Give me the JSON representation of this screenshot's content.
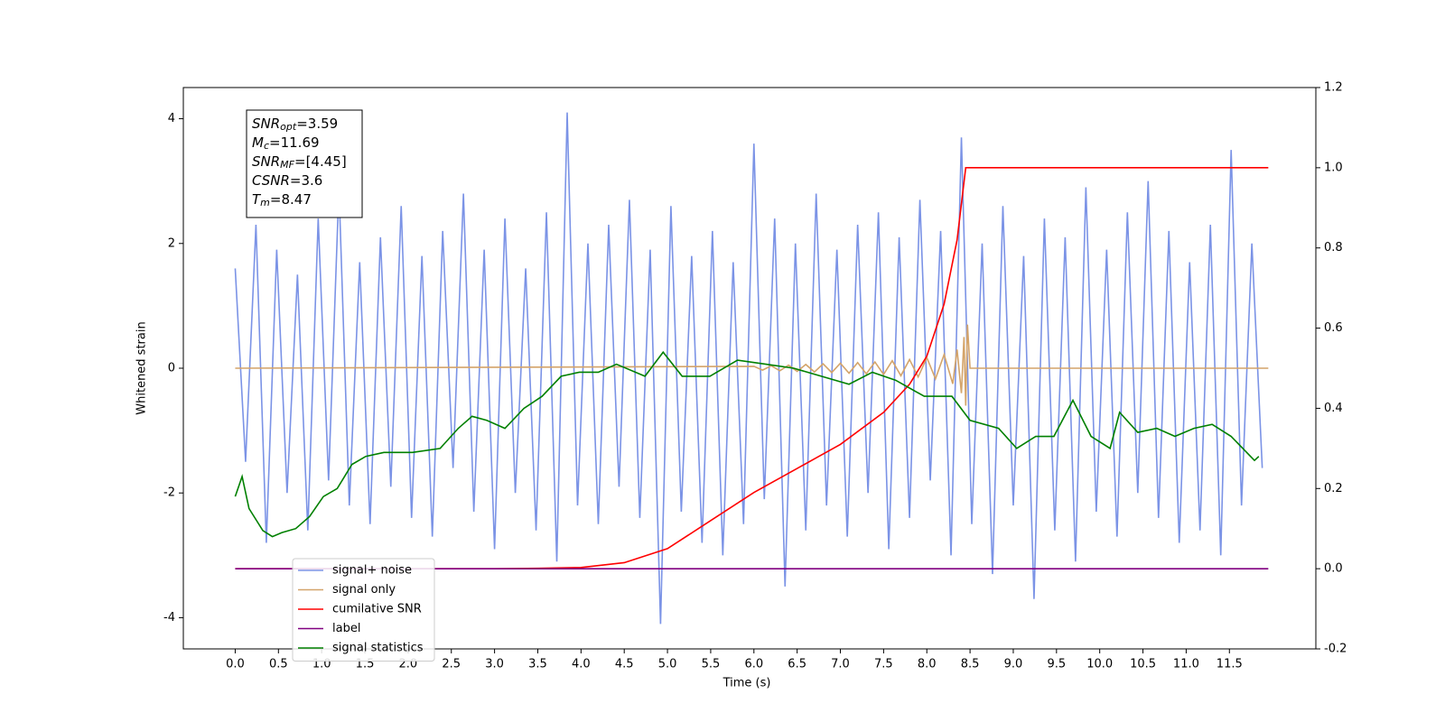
{
  "chart_data": {
    "type": "line",
    "xlabel": "Time (s)",
    "ylabel": "Whitened strain",
    "xlim": [
      -0.6,
      12.5
    ],
    "ylim": [
      -4.5,
      4.5
    ],
    "y2lim": [
      -0.2,
      1.2
    ],
    "xticks": [
      {
        "value": 0,
        "label": "0.0"
      },
      0.5,
      {
        "value": 1,
        "label": "1.0"
      },
      1.5,
      {
        "value": 2,
        "label": "2.0"
      },
      2.5,
      {
        "value": 3,
        "label": "3.0"
      },
      3.5,
      {
        "value": 4,
        "label": "4.0"
      },
      4.5,
      {
        "value": 5,
        "label": "5.0"
      },
      5.5,
      {
        "value": 6,
        "label": "6.0"
      },
      6.5,
      {
        "value": 7,
        "label": "7.0"
      },
      7.5,
      {
        "value": 8,
        "label": "8.0"
      },
      8.5,
      {
        "value": 9,
        "label": "9.0"
      },
      9.5,
      {
        "value": 10,
        "label": "10.0"
      },
      10.5,
      {
        "value": 11,
        "label": "11.0"
      },
      11.5
    ],
    "yticks": [
      -4,
      -2,
      0,
      2,
      4
    ],
    "y2ticks": [
      -0.2,
      {
        "value": 0,
        "label": "0.0"
      },
      0.2,
      0.4,
      0.6,
      0.8,
      {
        "value": 1,
        "label": "1.0"
      },
      1.2
    ],
    "legend": "lower left",
    "annotation": [
      {
        "base": "SNR",
        "sub": "opt",
        "rest": "=3.59"
      },
      {
        "base": "M",
        "sub": "c",
        "rest": "=11.69"
      },
      {
        "base": "SNR",
        "sub": "MF",
        "rest": "=[4.45]"
      },
      {
        "base": "CSNR",
        "sub": "",
        "rest": "=3.6"
      },
      {
        "base": "T",
        "sub": "m",
        "rest": "=8.47"
      }
    ],
    "series": [
      {
        "name": "signal+ noise",
        "color": "#7b93e6",
        "axis": "y",
        "x": [
          0,
          0.12,
          0.24,
          0.36,
          0.48,
          0.6,
          0.72,
          0.84,
          0.96,
          1.08,
          1.2,
          1.32,
          1.44,
          1.56,
          1.68,
          1.8,
          1.92,
          2.04,
          2.16,
          2.28,
          2.4,
          2.52,
          2.64,
          2.76,
          2.88,
          3,
          3.12,
          3.24,
          3.36,
          3.48,
          3.6,
          3.72,
          3.84,
          3.96,
          4.08,
          4.2,
          4.32,
          4.44,
          4.56,
          4.68,
          4.8,
          4.92,
          5.04,
          5.16,
          5.28,
          5.4,
          5.52,
          5.64,
          5.76,
          5.88,
          6,
          6.12,
          6.24,
          6.36,
          6.48,
          6.6,
          6.72,
          6.84,
          6.96,
          7.08,
          7.2,
          7.32,
          7.44,
          7.56,
          7.68,
          7.8,
          7.92,
          8.04,
          8.16,
          8.28,
          8.4,
          8.52,
          8.64,
          8.76,
          8.88,
          9,
          9.12,
          9.24,
          9.36,
          9.48,
          9.6,
          9.72,
          9.84,
          9.96,
          10.08,
          10.2,
          10.32,
          10.44,
          10.56,
          10.68,
          10.8,
          10.92,
          11.04,
          11.16,
          11.28,
          11.4,
          11.52,
          11.64,
          11.76,
          11.88
        ],
        "values": [
          1.6,
          -1.5,
          2.3,
          -2.8,
          1.9,
          -2.0,
          1.5,
          -2.6,
          2.4,
          -1.8,
          2.9,
          -2.2,
          1.7,
          -2.5,
          2.1,
          -1.9,
          2.6,
          -2.4,
          1.8,
          -2.7,
          2.2,
          -1.6,
          2.8,
          -2.3,
          1.9,
          -2.9,
          2.4,
          -2.0,
          1.6,
          -2.6,
          2.5,
          -3.1,
          4.1,
          -2.2,
          2.0,
          -2.5,
          2.3,
          -1.9,
          2.7,
          -2.4,
          1.9,
          -4.1,
          2.6,
          -2.3,
          1.8,
          -2.8,
          2.2,
          -3.0,
          1.7,
          -2.5,
          3.6,
          -2.1,
          2.4,
          -3.5,
          2.0,
          -2.6,
          2.8,
          -2.2,
          1.9,
          -2.7,
          2.3,
          -2.0,
          2.5,
          -2.9,
          2.1,
          -2.4,
          2.7,
          -1.8,
          2.2,
          -3.0,
          3.7,
          -2.5,
          2.0,
          -3.3,
          2.6,
          -2.2,
          1.8,
          -3.7,
          2.4,
          -2.6,
          2.1,
          -3.1,
          2.9,
          -2.3,
          1.9,
          -2.7,
          2.5,
          -2.0,
          3.0,
          -2.4,
          2.2,
          -2.8,
          1.7,
          -2.6,
          2.3,
          -3.0,
          3.5,
          -2.2,
          2.0,
          -1.6
        ]
      },
      {
        "name": "signal only",
        "color": "#d4a46a",
        "axis": "y",
        "x": [
          0,
          6.0,
          6.1,
          6.2,
          6.3,
          6.4,
          6.5,
          6.6,
          6.7,
          6.8,
          6.9,
          7.0,
          7.1,
          7.2,
          7.3,
          7.4,
          7.5,
          7.6,
          7.7,
          7.8,
          7.9,
          8.0,
          8.1,
          8.2,
          8.3,
          8.35,
          8.4,
          8.43,
          8.45,
          8.47,
          8.5,
          11.95
        ],
        "values": [
          0,
          0.03,
          -0.03,
          0.04,
          -0.04,
          0.05,
          -0.05,
          0.06,
          -0.06,
          0.07,
          -0.07,
          0.08,
          -0.08,
          0.09,
          -0.09,
          0.1,
          -0.1,
          0.12,
          -0.12,
          0.14,
          -0.14,
          0.17,
          -0.17,
          0.22,
          -0.25,
          0.3,
          -0.4,
          0.5,
          -0.6,
          0.7,
          0,
          0
        ]
      },
      {
        "name": "cumilative SNR",
        "color": "#ff0000",
        "axis": "y2",
        "x": [
          0,
          3.0,
          3.5,
          4.0,
          4.5,
          5.0,
          5.5,
          6.0,
          6.5,
          7.0,
          7.5,
          7.8,
          8.0,
          8.2,
          8.35,
          8.45,
          11.95
        ],
        "values": [
          0,
          0,
          0.001,
          0.003,
          0.015,
          0.05,
          0.12,
          0.19,
          0.25,
          0.31,
          0.39,
          0.46,
          0.53,
          0.66,
          0.82,
          1.0,
          1.0
        ]
      },
      {
        "name": "label",
        "color": "#800080",
        "axis": "y2",
        "x": [
          0,
          11.95
        ],
        "values": [
          0,
          0
        ]
      },
      {
        "name": "signal statistics",
        "color": "#008000",
        "axis": "y2",
        "x": [
          0,
          0.08,
          0.16,
          0.32,
          0.43,
          0.54,
          0.7,
          0.86,
          1.02,
          1.18,
          1.35,
          1.51,
          1.72,
          2.05,
          2.37,
          2.58,
          2.74,
          2.91,
          3.12,
          3.34,
          3.55,
          3.77,
          3.98,
          4.2,
          4.41,
          4.74,
          4.95,
          5.17,
          5.49,
          5.81,
          6.14,
          6.46,
          6.78,
          7.1,
          7.37,
          7.64,
          7.97,
          8.29,
          8.5,
          8.83,
          9.04,
          9.26,
          9.47,
          9.69,
          9.9,
          10.12,
          10.23,
          10.44,
          10.66,
          10.87,
          11.09,
          11.3,
          11.52,
          11.79,
          11.84
        ],
        "values": [
          0.18,
          0.23,
          0.15,
          0.095,
          0.08,
          0.09,
          0.1,
          0.13,
          0.18,
          0.2,
          0.26,
          0.28,
          0.29,
          0.29,
          0.3,
          0.35,
          0.38,
          0.37,
          0.35,
          0.4,
          0.43,
          0.48,
          0.49,
          0.49,
          0.51,
          0.48,
          0.54,
          0.48,
          0.48,
          0.52,
          0.51,
          0.5,
          0.48,
          0.46,
          0.49,
          0.47,
          0.43,
          0.43,
          0.37,
          0.35,
          0.3,
          0.33,
          0.33,
          0.42,
          0.33,
          0.3,
          0.39,
          0.34,
          0.35,
          0.33,
          0.35,
          0.36,
          0.33,
          0.27,
          0.28
        ]
      }
    ]
  }
}
